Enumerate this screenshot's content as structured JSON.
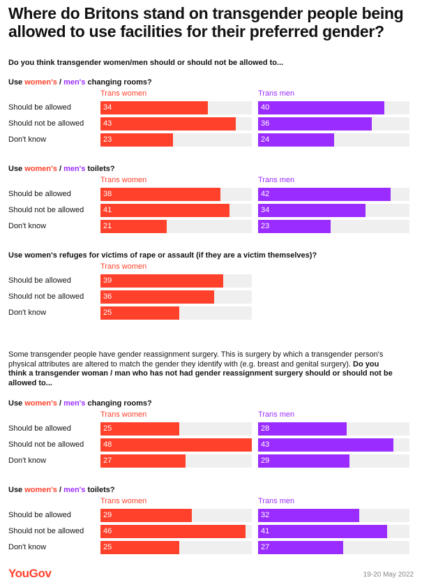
{
  "title": "Where do Britons stand on transgender people being allowed to use facilities  for their preferred gender?",
  "question1": "Do you think transgender women/men should or should not be allowed to...",
  "intro": {
    "plain": "Some transgender people have gender reassignment surgery. This is surgery by which a transgender person's physical attributes are altered to match the gender they identify with (e.g. breast and genital surgery). ",
    "bold": "Do you think a transgender woman / man who has not had gender reassignment surgery should or should not be allowed to..."
  },
  "footer": {
    "logo": "YouGov",
    "date": "19-20 May 2022"
  },
  "colors": {
    "women": "#ff412c",
    "men": "#9b2cff",
    "track": "#efefef"
  },
  "chart_data": [
    {
      "type": "bar",
      "title": {
        "pre": "Use ",
        "w": "women's",
        "sep": " / ",
        "m": "men's",
        "post": " changing rooms?"
      },
      "categories": [
        "Should be allowed",
        "Should not be allowed",
        "Don't know"
      ],
      "series": [
        {
          "name": "Trans women",
          "values": [
            34,
            43,
            23
          ]
        },
        {
          "name": "Trans men",
          "values": [
            40,
            36,
            24
          ]
        }
      ],
      "xlim": [
        0,
        48
      ]
    },
    {
      "type": "bar",
      "title": {
        "pre": "Use ",
        "w": "women's",
        "sep": " / ",
        "m": "men's",
        "post": " toilets?"
      },
      "categories": [
        "Should be allowed",
        "Should not be allowed",
        "Don't know"
      ],
      "series": [
        {
          "name": "Trans women",
          "values": [
            38,
            41,
            21
          ]
        },
        {
          "name": "Trans men",
          "values": [
            42,
            34,
            23
          ]
        }
      ],
      "xlim": [
        0,
        48
      ]
    },
    {
      "type": "bar",
      "title": {
        "pre": "Use women's refuges for victims of rape or assault (if they are a victim themselves)?",
        "w": "",
        "sep": "",
        "m": "",
        "post": ""
      },
      "categories": [
        "Should be allowed",
        "Should not be allowed",
        "Don't know"
      ],
      "series": [
        {
          "name": "Trans women",
          "values": [
            39,
            36,
            25
          ]
        }
      ],
      "xlim": [
        0,
        48
      ]
    },
    {
      "type": "bar",
      "title": {
        "pre": "Use ",
        "w": "women's",
        "sep": " / ",
        "m": "men's",
        "post": " changing rooms?"
      },
      "categories": [
        "Should be allowed",
        "Should not be allowed",
        "Don't know"
      ],
      "series": [
        {
          "name": "Trans women",
          "values": [
            25,
            48,
            27
          ]
        },
        {
          "name": "Trans men",
          "values": [
            28,
            43,
            29
          ]
        }
      ],
      "xlim": [
        0,
        48
      ]
    },
    {
      "type": "bar",
      "title": {
        "pre": "Use ",
        "w": "women's",
        "sep": " / ",
        "m": "men's",
        "post": " toilets?"
      },
      "categories": [
        "Should be allowed",
        "Should not be allowed",
        "Don't know"
      ],
      "series": [
        {
          "name": "Trans women",
          "values": [
            29,
            46,
            25
          ]
        },
        {
          "name": "Trans men",
          "values": [
            32,
            41,
            27
          ]
        }
      ],
      "xlim": [
        0,
        48
      ]
    }
  ]
}
